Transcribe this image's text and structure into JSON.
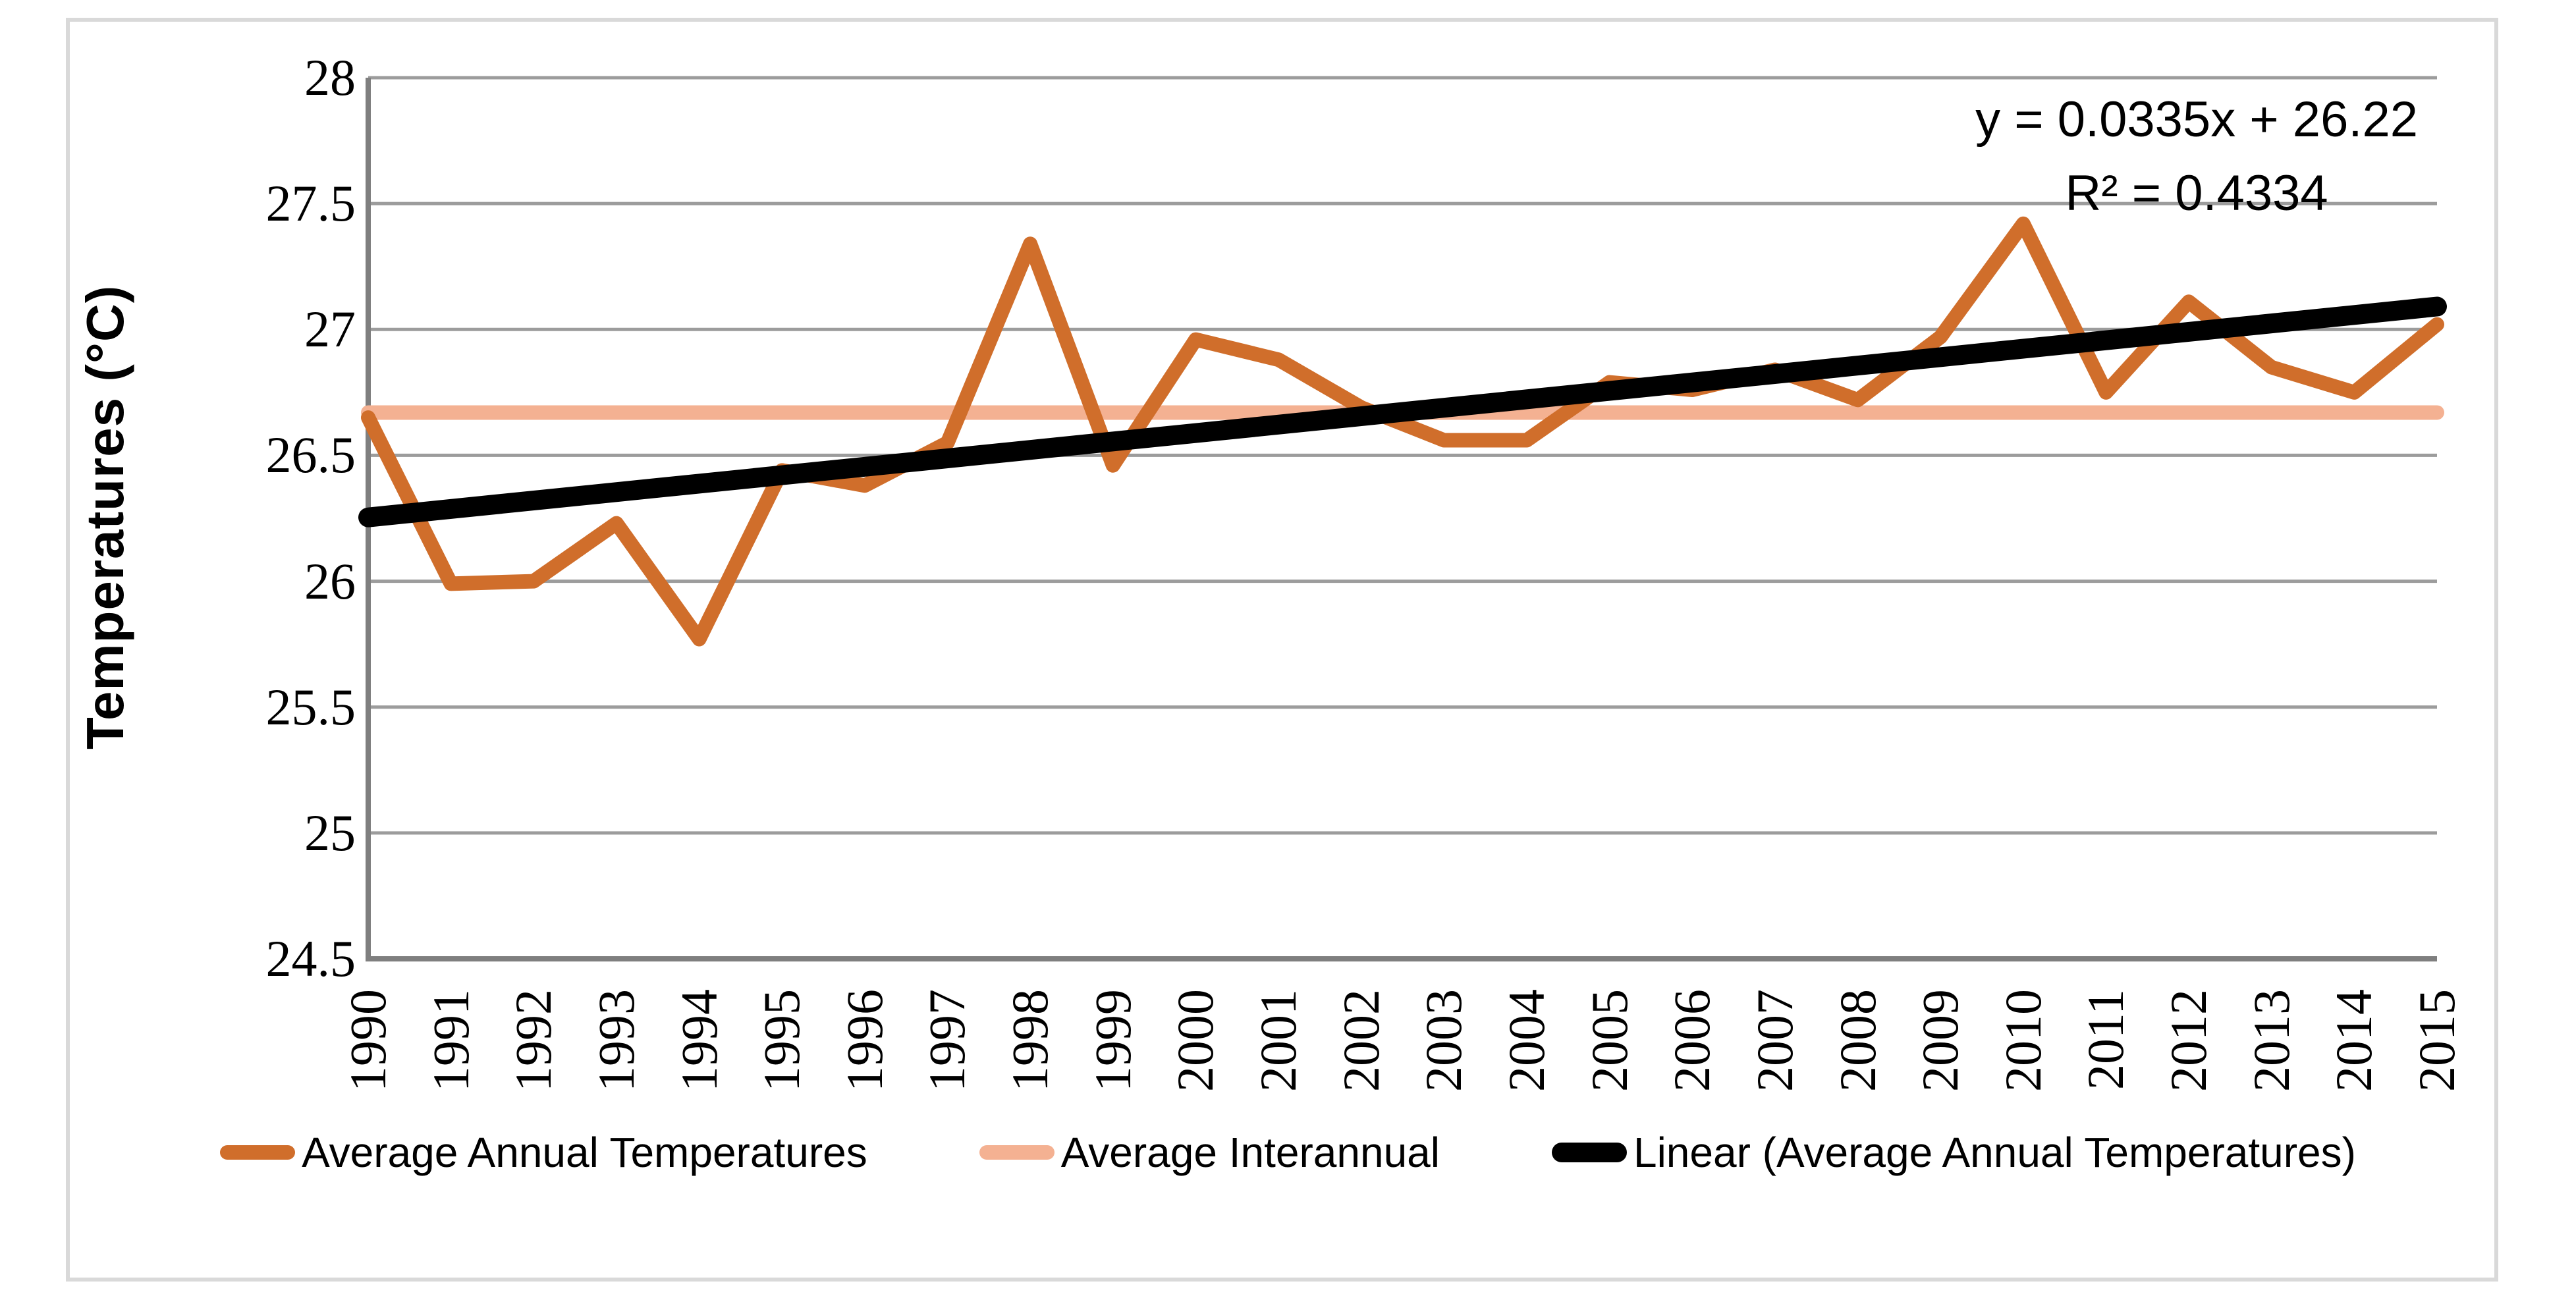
{
  "chart_data": {
    "type": "line",
    "title": "",
    "xlabel": "",
    "ylabel": "Temperatures (°C)",
    "ylim": [
      24.5,
      28
    ],
    "ytick_step": 0.5,
    "ytick_labels": [
      "24.5",
      "25",
      "25.5",
      "26",
      "26.5",
      "27",
      "27.5",
      "28"
    ],
    "grid": true,
    "legend_position": "bottom",
    "categories": [
      "1990",
      "1991",
      "1992",
      "1993",
      "1994",
      "1995",
      "1996",
      "1997",
      "1998",
      "1999",
      "2000",
      "2001",
      "2002",
      "2003",
      "2004",
      "2005",
      "2006",
      "2007",
      "2008",
      "2009",
      "2010",
      "2011",
      "2012",
      "2013",
      "2014",
      "2015"
    ],
    "series": [
      {
        "name": "Average Annual Temperatures",
        "kind": "line",
        "color": "#D06E2B",
        "values": [
          26.65,
          25.99,
          26.0,
          26.23,
          25.77,
          26.44,
          26.38,
          26.55,
          27.34,
          26.46,
          26.96,
          26.88,
          26.69,
          26.56,
          26.56,
          26.79,
          26.76,
          26.84,
          26.72,
          26.97,
          27.42,
          26.75,
          27.11,
          26.85,
          26.75,
          27.02
        ]
      },
      {
        "name": "Average Interannual",
        "kind": "constant",
        "color": "#F4B192",
        "value": 26.67
      },
      {
        "name": "Linear (Average Annual Temperatures)",
        "kind": "trend",
        "color": "#000000",
        "slope": 0.0335,
        "intercept": 26.22
      }
    ],
    "annotations": [
      "y = 0.0335x + 26.22",
      "R² = 0.4334"
    ],
    "style": {
      "grid_color": "#9C9C9C",
      "axis_color": "#7F7F7F",
      "frame_color": "#D9D9D9",
      "background": "#FFFFFF"
    }
  }
}
